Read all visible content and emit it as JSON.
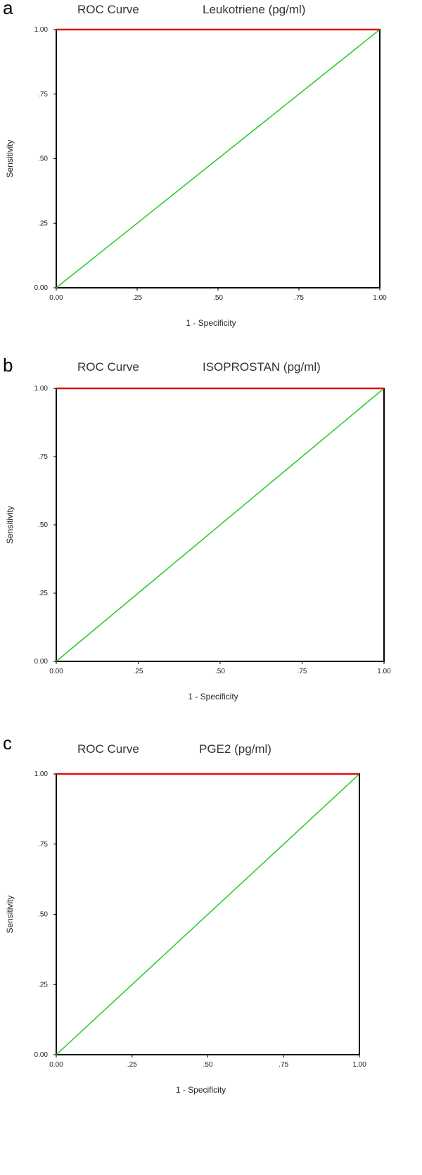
{
  "chart_data": [
    {
      "type": "line",
      "panel_label": "a",
      "title": "ROC Curve",
      "subtitle": "Leukotriene (pg/ml)",
      "xlabel": "1 - Specificity",
      "ylabel": "Sensitivity",
      "xlim": [
        0,
        1
      ],
      "ylim": [
        0,
        1
      ],
      "xticks": [
        "0.00",
        ".25",
        ".50",
        ".75",
        "1.00"
      ],
      "yticks": [
        "0.00",
        ".25",
        ".50",
        ".75",
        "1.00"
      ],
      "series": [
        {
          "color": "#22cc22",
          "x": [
            0,
            0.25,
            0.75,
            1
          ],
          "y": [
            0,
            0.25,
            0.75,
            1
          ]
        },
        {
          "color": "#dd1111",
          "x": [
            0,
            1
          ],
          "y": [
            1,
            1
          ]
        }
      ]
    },
    {
      "type": "line",
      "panel_label": "b",
      "title": "ROC Curve",
      "subtitle": "ISOPROSTAN (pg/ml)",
      "xlabel": "1 - Specificity",
      "ylabel": "Sensitivity",
      "xlim": [
        0,
        1
      ],
      "ylim": [
        0,
        1
      ],
      "xticks": [
        "0.00",
        ".25",
        ".50",
        ".75",
        "1.00"
      ],
      "yticks": [
        "0.00",
        ".25",
        ".50",
        ".75",
        "1.00"
      ],
      "series": [
        {
          "color": "#22cc22",
          "x": [
            0,
            0.25,
            0.75,
            1
          ],
          "y": [
            0,
            0.25,
            0.75,
            1
          ]
        },
        {
          "color": "#dd1111",
          "x": [
            0,
            1
          ],
          "y": [
            1,
            1
          ]
        }
      ]
    },
    {
      "type": "line",
      "panel_label": "c",
      "title": "ROC Curve",
      "subtitle": "PGE2 (pg/ml)",
      "xlabel": "1 - Specificity",
      "ylabel": "Sensitivity",
      "xlim": [
        0,
        1
      ],
      "ylim": [
        0,
        1
      ],
      "xticks": [
        "0.00",
        ".25",
        ".50",
        ".75",
        "1.00"
      ],
      "yticks": [
        "0.00",
        ".25",
        ".50",
        ".75",
        "1.00"
      ],
      "series": [
        {
          "color": "#22cc22",
          "x": [
            0,
            0.25,
            0.75,
            1
          ],
          "y": [
            0,
            0.25,
            0.75,
            1
          ]
        },
        {
          "color": "#dd1111",
          "x": [
            0,
            1
          ],
          "y": [
            1,
            1
          ]
        }
      ]
    }
  ]
}
